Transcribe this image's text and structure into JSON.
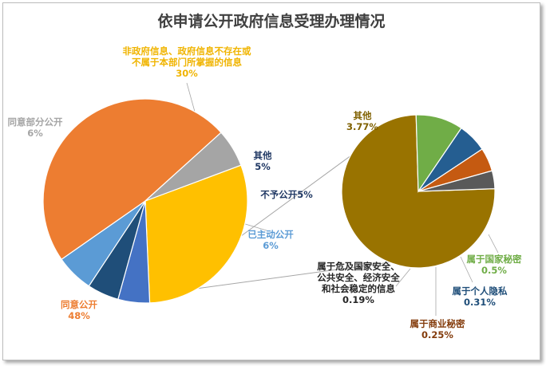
{
  "chart_data": {
    "type": "pie",
    "subtype": "pie-of-pie",
    "title": "依申请公开政府信息受理办理情况",
    "legend": "none",
    "main_slices": [
      {
        "name": "非政府信息、政府信息不存在或不属于本部门所掌握的信息",
        "name_lines": [
          "非政府信息、政府信息不存在或",
          "不属于本部门所掌握的信息"
        ],
        "value": 30,
        "label": "30%",
        "color": "#FFC000",
        "label_color": "#F0B400"
      },
      {
        "name": "其他",
        "value": 5,
        "label": "5%",
        "color": "#4472C4",
        "label_color": "#203864"
      },
      {
        "name": "不予公开",
        "value": 5,
        "label": "5%",
        "color": "#1F4E79",
        "label_color": "#203864"
      },
      {
        "name": "已主动公开",
        "value": 6,
        "label": "6%",
        "color": "#5B9BD5",
        "label_color": "#5B9BD5"
      },
      {
        "name": "同意公开",
        "value": 48,
        "label": "48%",
        "color": "#ED7D31",
        "label_color": "#ED7D31"
      },
      {
        "name": "同意部分公开",
        "value": 6,
        "label": "6%",
        "color": "#A5A5A5",
        "label_color": "#A5A5A5"
      }
    ],
    "breakdown_of": "其他",
    "sub_slices": [
      {
        "name": "其他",
        "value": 3.77,
        "label": "3.77%",
        "color": "#997300",
        "label_color": "#7F6000"
      },
      {
        "name": "属于国家秘密",
        "value": 0.5,
        "label": "0.5%",
        "color": "#70AD47",
        "label_color": "#70AD47"
      },
      {
        "name": "属于个人隐私",
        "value": 0.31,
        "label": "0.31%",
        "color": "#255E91",
        "label_color": "#1F4E79"
      },
      {
        "name": "属于商业秘密",
        "value": 0.25,
        "label": "0.25%",
        "color": "#C55A11",
        "label_color": "#843C0C"
      },
      {
        "name": "属于危及国家安全、公共安全、经济安全和社会稳定的信息",
        "name_lines": [
          "属于危及国家安全、",
          "公共安全、经济安全",
          "和社会稳定的信息"
        ],
        "value": 0.19,
        "label": "0.19%",
        "color": "#595959",
        "label_color": "#262626"
      }
    ]
  }
}
